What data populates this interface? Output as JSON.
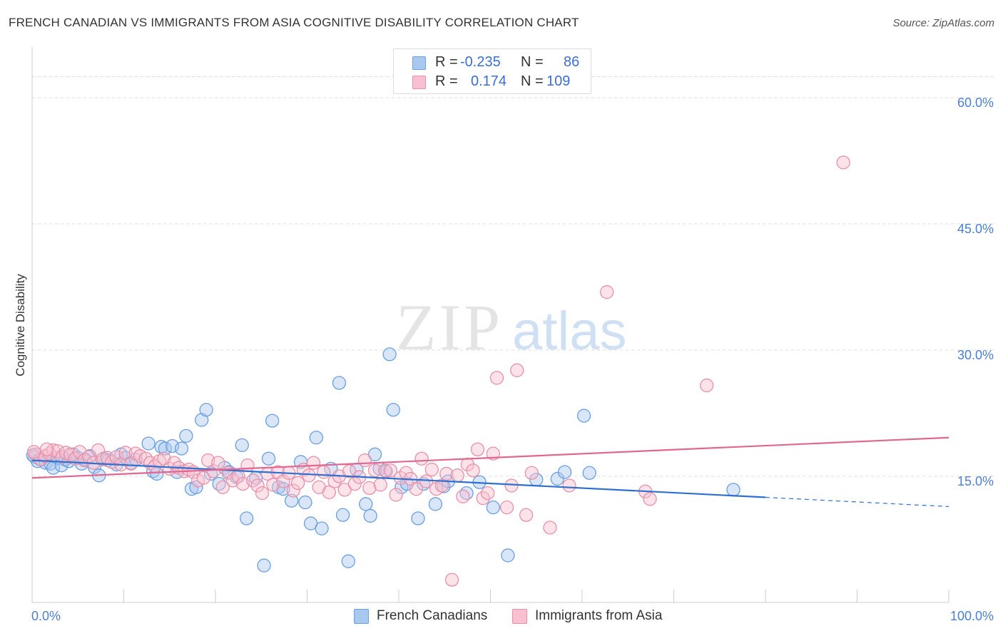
{
  "title": "FRENCH CANADIAN VS IMMIGRANTS FROM ASIA COGNITIVE DISABILITY CORRELATION CHART",
  "source": "Source: ZipAtlas.com",
  "watermark": {
    "zip": "ZIP",
    "atlas": "atlas"
  },
  "legend": {
    "rows": [
      {
        "r_label": "R =",
        "r_value": "-0.235",
        "n_label": "N =",
        "n_value": "86",
        "color": "#a8c8f0",
        "border": "#6a9fe0"
      },
      {
        "r_label": "R =",
        "r_value": "0.174",
        "n_label": "N =",
        "n_value": "109",
        "color": "#f8c0d0",
        "border": "#e890a8"
      }
    ]
  },
  "chart_data": {
    "type": "scatter",
    "ylabel": "Cognitive Disability",
    "xlim": [
      0,
      100
    ],
    "ylim": [
      0,
      65
    ],
    "x_tick_labels": [
      "0.0%",
      "100.0%"
    ],
    "y_ticks": [
      15,
      30,
      45,
      60
    ],
    "y_tick_labels": [
      "15.0%",
      "30.0%",
      "45.0%",
      "60.0%"
    ],
    "grid": true,
    "series": [
      {
        "name": "French Canadians",
        "color": "#6a9fe0",
        "fill": "#a8c8f0",
        "trend": {
          "x0": 0,
          "y0": 16.9,
          "x1": 80,
          "y1": 12.5,
          "dash_x1": 100,
          "dash_y1": 11.4,
          "color": "#2e6fd0"
        },
        "points": [
          [
            0.3,
            17.3
          ],
          [
            0.6,
            16.8
          ],
          [
            1.0,
            17.0
          ],
          [
            1.5,
            16.6
          ],
          [
            2.0,
            16.5
          ],
          [
            2.3,
            16.0
          ],
          [
            2.8,
            17.2
          ],
          [
            3.2,
            16.3
          ],
          [
            3.6,
            17.0
          ],
          [
            4.0,
            16.8
          ],
          [
            4.5,
            17.6
          ],
          [
            5.0,
            17.2
          ],
          [
            5.4,
            16.5
          ],
          [
            5.8,
            17.0
          ],
          [
            6.3,
            17.4
          ],
          [
            6.8,
            16.1
          ],
          [
            7.3,
            15.1
          ],
          [
            7.8,
            17.1
          ],
          [
            8.3,
            16.9
          ],
          [
            9.2,
            16.4
          ],
          [
            9.7,
            17.6
          ],
          [
            10.2,
            17.2
          ],
          [
            10.8,
            16.6
          ],
          [
            11.3,
            17.0
          ],
          [
            12.7,
            18.9
          ],
          [
            13.2,
            15.6
          ],
          [
            13.6,
            15.3
          ],
          [
            14.1,
            18.5
          ],
          [
            14.5,
            18.3
          ],
          [
            15.3,
            18.6
          ],
          [
            15.8,
            15.5
          ],
          [
            16.3,
            18.3
          ],
          [
            16.8,
            19.8
          ],
          [
            17.4,
            13.5
          ],
          [
            17.9,
            13.7
          ],
          [
            18.5,
            21.7
          ],
          [
            19.0,
            22.9
          ],
          [
            19.5,
            15.3
          ],
          [
            20.4,
            14.1
          ],
          [
            21.0,
            16.0
          ],
          [
            21.5,
            15.5
          ],
          [
            22.3,
            14.9
          ],
          [
            22.9,
            18.7
          ],
          [
            23.4,
            10.0
          ],
          [
            24.4,
            14.8
          ],
          [
            25.3,
            4.4
          ],
          [
            25.8,
            17.1
          ],
          [
            26.2,
            21.6
          ],
          [
            26.9,
            13.7
          ],
          [
            27.4,
            13.5
          ],
          [
            28.3,
            12.1
          ],
          [
            29.3,
            16.7
          ],
          [
            29.8,
            11.9
          ],
          [
            30.4,
            9.4
          ],
          [
            31.0,
            19.6
          ],
          [
            31.6,
            8.8
          ],
          [
            32.6,
            15.9
          ],
          [
            33.5,
            26.1
          ],
          [
            33.9,
            10.4
          ],
          [
            34.5,
            4.9
          ],
          [
            35.4,
            15.8
          ],
          [
            36.4,
            11.7
          ],
          [
            36.9,
            10.3
          ],
          [
            37.4,
            17.6
          ],
          [
            37.9,
            15.9
          ],
          [
            38.6,
            15.6
          ],
          [
            39.0,
            29.5
          ],
          [
            39.4,
            22.9
          ],
          [
            40.3,
            13.7
          ],
          [
            40.9,
            14.1
          ],
          [
            42.1,
            10.0
          ],
          [
            42.7,
            14.1
          ],
          [
            44.0,
            11.7
          ],
          [
            44.9,
            13.8
          ],
          [
            45.4,
            14.4
          ],
          [
            47.4,
            13.0
          ],
          [
            48.8,
            14.3
          ],
          [
            50.3,
            11.3
          ],
          [
            51.9,
            5.6
          ],
          [
            55.0,
            14.6
          ],
          [
            57.3,
            14.7
          ],
          [
            58.1,
            15.5
          ],
          [
            60.2,
            22.2
          ],
          [
            60.8,
            15.4
          ],
          [
            76.5,
            13.4
          ],
          [
            0.1,
            17.5
          ]
        ]
      },
      {
        "name": "Immigrants from Asia",
        "color": "#e890a8",
        "fill": "#f8c0d0",
        "trend": {
          "x0": 0,
          "y0": 14.8,
          "x1": 100,
          "y1": 19.6,
          "color": "#e06890"
        },
        "points": [
          [
            0.4,
            17.6
          ],
          [
            0.9,
            17.0
          ],
          [
            1.4,
            17.4
          ],
          [
            1.9,
            17.7
          ],
          [
            2.3,
            18.1
          ],
          [
            2.8,
            18.0
          ],
          [
            3.3,
            17.3
          ],
          [
            3.7,
            17.8
          ],
          [
            4.2,
            17.6
          ],
          [
            4.7,
            17.1
          ],
          [
            5.2,
            17.9
          ],
          [
            5.7,
            16.9
          ],
          [
            6.2,
            17.3
          ],
          [
            6.7,
            16.6
          ],
          [
            7.2,
            18.1
          ],
          [
            7.7,
            17.0
          ],
          [
            8.2,
            17.2
          ],
          [
            8.7,
            16.7
          ],
          [
            9.2,
            17.3
          ],
          [
            9.7,
            16.4
          ],
          [
            10.2,
            17.8
          ],
          [
            10.8,
            16.5
          ],
          [
            11.3,
            17.7
          ],
          [
            11.8,
            17.4
          ],
          [
            12.4,
            17.1
          ],
          [
            12.9,
            16.6
          ],
          [
            13.4,
            16.2
          ],
          [
            13.9,
            16.8
          ],
          [
            14.4,
            17.1
          ],
          [
            15.0,
            15.9
          ],
          [
            15.5,
            16.6
          ],
          [
            16.0,
            16.0
          ],
          [
            16.6,
            15.6
          ],
          [
            17.1,
            15.8
          ],
          [
            17.6,
            15.5
          ],
          [
            18.1,
            14.5
          ],
          [
            18.7,
            14.8
          ],
          [
            19.2,
            16.9
          ],
          [
            19.8,
            15.6
          ],
          [
            20.3,
            16.6
          ],
          [
            20.8,
            13.7
          ],
          [
            21.4,
            15.4
          ],
          [
            21.9,
            14.5
          ],
          [
            22.5,
            15.0
          ],
          [
            23.0,
            14.1
          ],
          [
            23.5,
            16.3
          ],
          [
            24.1,
            14.5
          ],
          [
            24.6,
            13.9
          ],
          [
            25.1,
            13.0
          ],
          [
            25.7,
            15.3
          ],
          [
            26.3,
            14.0
          ],
          [
            26.8,
            15.5
          ],
          [
            27.4,
            14.4
          ],
          [
            28.0,
            15.4
          ],
          [
            28.5,
            13.3
          ],
          [
            29.0,
            14.2
          ],
          [
            29.6,
            15.8
          ],
          [
            30.2,
            15.1
          ],
          [
            30.7,
            16.6
          ],
          [
            31.3,
            13.7
          ],
          [
            31.8,
            15.5
          ],
          [
            32.4,
            13.1
          ],
          [
            33.0,
            14.4
          ],
          [
            33.5,
            15.0
          ],
          [
            34.1,
            13.4
          ],
          [
            34.6,
            15.6
          ],
          [
            35.2,
            14.1
          ],
          [
            35.7,
            14.9
          ],
          [
            36.3,
            16.9
          ],
          [
            36.8,
            13.6
          ],
          [
            37.4,
            15.7
          ],
          [
            38.0,
            14.0
          ],
          [
            38.5,
            15.7
          ],
          [
            39.1,
            15.7
          ],
          [
            39.7,
            12.8
          ],
          [
            40.2,
            14.8
          ],
          [
            40.8,
            15.4
          ],
          [
            41.3,
            14.7
          ],
          [
            41.9,
            13.5
          ],
          [
            42.5,
            17.1
          ],
          [
            43.0,
            14.4
          ],
          [
            43.6,
            15.8
          ],
          [
            44.1,
            13.5
          ],
          [
            44.7,
            13.9
          ],
          [
            45.2,
            15.3
          ],
          [
            45.8,
            2.7
          ],
          [
            46.4,
            15.1
          ],
          [
            47.0,
            12.6
          ],
          [
            47.5,
            16.4
          ],
          [
            48.1,
            15.7
          ],
          [
            48.6,
            18.2
          ],
          [
            49.2,
            12.4
          ],
          [
            49.7,
            13.0
          ],
          [
            50.3,
            17.7
          ],
          [
            50.7,
            26.7
          ],
          [
            51.8,
            11.3
          ],
          [
            52.3,
            13.9
          ],
          [
            52.9,
            27.6
          ],
          [
            53.9,
            10.4
          ],
          [
            54.5,
            15.4
          ],
          [
            56.5,
            8.9
          ],
          [
            58.6,
            13.9
          ],
          [
            62.7,
            36.9
          ],
          [
            66.9,
            13.2
          ],
          [
            67.4,
            12.3
          ],
          [
            73.6,
            25.8
          ],
          [
            88.5,
            52.3
          ],
          [
            0.2,
            17.9
          ],
          [
            1.6,
            18.2
          ]
        ]
      }
    ]
  }
}
